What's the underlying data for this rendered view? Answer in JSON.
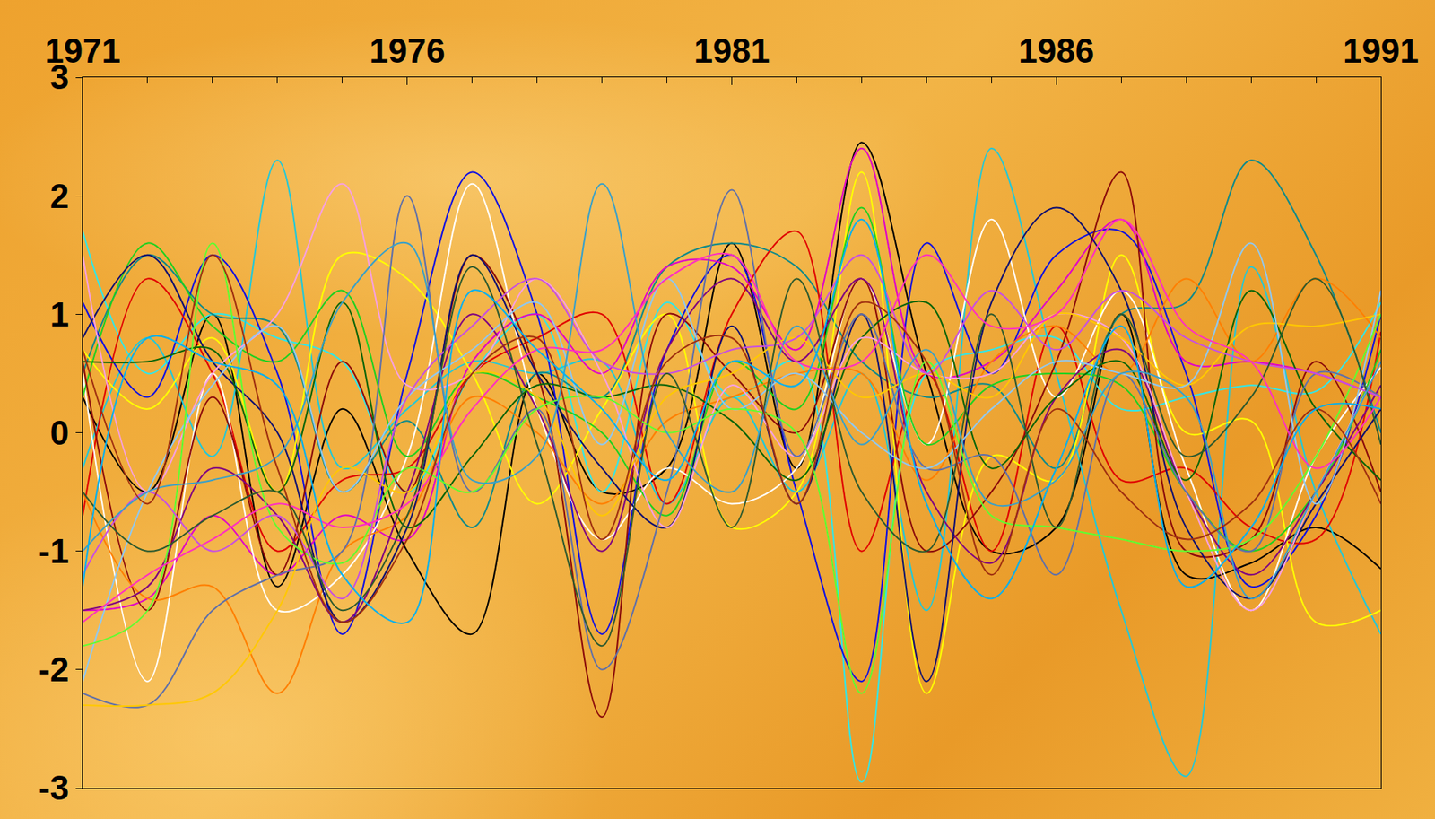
{
  "chart_data": {
    "type": "line",
    "line_style": "smooth",
    "grid": false,
    "x": [
      1971,
      1972,
      1973,
      1974,
      1975,
      1976,
      1977,
      1978,
      1979,
      1980,
      1981,
      1982,
      1983,
      1984,
      1985,
      1986,
      1987,
      1988,
      1989,
      1990,
      1991
    ],
    "xlim": [
      1971,
      1991
    ],
    "xticks": [
      1971,
      1976,
      1981,
      1986,
      1991
    ],
    "ylim": [
      -3,
      3
    ],
    "yticks": [
      -3,
      -2,
      -1,
      0,
      1,
      2,
      3
    ],
    "series": [
      {
        "color": "#000000",
        "values": [
          0.3,
          -0.5,
          1.0,
          -1.3,
          0.2,
          -1.0,
          -1.7,
          0.5,
          -0.5,
          -0.3,
          1.6,
          -0.3,
          2.45,
          0.5,
          -1.0,
          -0.8,
          1.0,
          -1.2,
          -1.1,
          -0.8,
          -1.15
        ]
      },
      {
        "color": "#33e6e6",
        "values": [
          1.7,
          0.5,
          1.0,
          0.8,
          0.6,
          -0.5,
          0.5,
          1.0,
          -0.5,
          1.1,
          0.3,
          0.6,
          -2.95,
          0.5,
          0.7,
          0.8,
          0.2,
          0.3,
          0.4,
          0.35,
          1.1
        ]
      },
      {
        "color": "#22c8d8",
        "values": [
          -0.3,
          0.8,
          -0.2,
          2.3,
          -0.3,
          0.2,
          0.6,
          0.5,
          0.6,
          -0.6,
          0.3,
          -0.5,
          0.5,
          -1.5,
          2.4,
          0.5,
          -1.5,
          -2.9,
          1.4,
          -0.5,
          -1.7
        ]
      },
      {
        "color": "#0e8a8a",
        "values": [
          0.5,
          1.5,
          1.0,
          0.9,
          -0.5,
          0.1,
          -0.8,
          0.5,
          0.3,
          1.4,
          1.6,
          1.4,
          0.6,
          0.3,
          0.4,
          -0.3,
          1.0,
          1.1,
          2.3,
          1.5,
          0.0
        ]
      },
      {
        "color": "#1010e0",
        "values": [
          1.1,
          0.3,
          1.5,
          0.5,
          -1.7,
          0.5,
          2.2,
          1.0,
          -1.7,
          0.7,
          1.5,
          -0.5,
          -2.1,
          1.6,
          0.5,
          1.5,
          1.7,
          0.5,
          -1.3,
          -0.7,
          1.0
        ]
      },
      {
        "color": "#e00000",
        "values": [
          -0.7,
          1.3,
          0.5,
          -1.0,
          -0.4,
          -0.3,
          0.5,
          0.8,
          1.0,
          -0.6,
          1.0,
          1.7,
          -1.0,
          0.5,
          -1.0,
          0.9,
          -0.4,
          -0.3,
          -0.8,
          -0.9,
          0.85
        ]
      },
      {
        "color": "#e000c8",
        "values": [
          -1.5,
          -1.4,
          -0.7,
          -1.2,
          -0.7,
          -0.9,
          0.6,
          1.0,
          0.5,
          1.4,
          1.4,
          0.7,
          2.4,
          0.5,
          0.6,
          1.2,
          1.8,
          0.6,
          0.6,
          0.5,
          0.3
        ]
      },
      {
        "color": "#ffff00",
        "values": [
          0.7,
          0.2,
          0.8,
          -0.5,
          1.5,
          1.3,
          0.5,
          -0.6,
          0.2,
          1.0,
          -0.8,
          -0.5,
          2.2,
          -2.2,
          -0.2,
          -0.4,
          1.5,
          0.0,
          0.1,
          -1.6,
          -1.5
        ]
      },
      {
        "color": "#ffffff",
        "values": [
          0.5,
          -2.1,
          0.5,
          -1.5,
          -1.2,
          -0.2,
          2.1,
          0.2,
          -0.9,
          -0.3,
          -0.6,
          -0.3,
          1.3,
          -0.1,
          1.8,
          0.3,
          1.2,
          -0.3,
          -1.5,
          -0.2,
          0.55
        ]
      },
      {
        "color": "#20d020",
        "values": [
          0.3,
          1.6,
          0.9,
          0.6,
          1.2,
          -0.2,
          0.5,
          0.3,
          0.0,
          -0.7,
          0.6,
          0.2,
          1.9,
          -0.1,
          0.4,
          0.5,
          0.4,
          -0.5,
          -1.0,
          -0.5,
          0.7
        ]
      },
      {
        "color": "#8b0a0a",
        "values": [
          0.6,
          -1.5,
          0.3,
          -1.2,
          0.6,
          -0.5,
          1.5,
          0.5,
          -2.4,
          1.0,
          0.5,
          0.0,
          1.3,
          -1.0,
          -0.5,
          0.6,
          2.2,
          -1.0,
          -0.9,
          0.6,
          -0.5
        ]
      },
      {
        "color": "#ff7f00",
        "values": [
          -0.5,
          -1.4,
          -1.3,
          -2.2,
          -1.0,
          -0.7,
          0.3,
          0.0,
          -0.6,
          0.1,
          0.3,
          0.5,
          0.5,
          -0.4,
          0.6,
          0.9,
          0.5,
          1.3,
          0.6,
          1.3,
          0.8
        ]
      },
      {
        "color": "#800080",
        "values": [
          -1.5,
          -1.3,
          -0.3,
          -0.7,
          -1.6,
          -0.5,
          1.0,
          0.2,
          -1.0,
          0.7,
          1.3,
          0.6,
          1.3,
          -0.5,
          -1.1,
          0.3,
          0.7,
          -0.5,
          -1.2,
          -0.5,
          0.4
        ]
      },
      {
        "color": "#101070",
        "values": [
          0.8,
          1.5,
          0.6,
          0.0,
          -1.6,
          -0.8,
          1.5,
          0.5,
          -0.3,
          -0.8,
          0.9,
          -0.6,
          1.0,
          -2.1,
          1.1,
          1.9,
          1.2,
          -0.8,
          -1.4,
          -0.6,
          0.2
        ]
      },
      {
        "color": "#086408",
        "values": [
          0.6,
          0.6,
          0.7,
          -0.5,
          1.1,
          -0.8,
          -0.2,
          0.4,
          0.3,
          0.4,
          0.1,
          -0.4,
          0.8,
          1.1,
          -0.3,
          0.3,
          0.6,
          -0.4,
          1.2,
          0.2,
          -0.4
        ]
      },
      {
        "color": "#f7a0e0",
        "values": [
          1.5,
          -0.5,
          0.5,
          1.0,
          2.1,
          0.4,
          0.5,
          1.3,
          0.5,
          -0.8,
          0.4,
          -0.2,
          0.8,
          0.5,
          0.5,
          1.0,
          0.8,
          -0.5,
          -1.5,
          -0.5,
          0.6
        ]
      },
      {
        "color": "#6070a8",
        "values": [
          -2.2,
          -2.3,
          -1.5,
          -1.2,
          -1.0,
          2.0,
          -0.5,
          0.2,
          -2.0,
          -0.5,
          2.05,
          -0.2,
          1.0,
          -0.3,
          -0.2,
          -1.2,
          0.5,
          -0.5,
          -1.0,
          0.5,
          0.3
        ]
      },
      {
        "color": "#ffc800",
        "values": [
          -2.3,
          -2.3,
          -2.2,
          -1.5,
          -0.3,
          -0.5,
          0.5,
          0.3,
          -0.7,
          0.3,
          0.5,
          0.8,
          0.3,
          0.5,
          0.3,
          1.0,
          0.8,
          0.4,
          0.9,
          0.9,
          1.0
        ]
      },
      {
        "color": "#90c8f0",
        "values": [
          -2.1,
          -0.5,
          0.4,
          0.9,
          -0.5,
          0.3,
          0.7,
          1.1,
          -0.1,
          1.3,
          0.2,
          0.5,
          0.0,
          -0.3,
          0.2,
          0.6,
          0.5,
          0.4,
          1.6,
          -0.6,
          1.2
        ]
      },
      {
        "color": "#60ff30",
        "values": [
          -1.8,
          -1.5,
          1.6,
          -0.8,
          -1.1,
          -0.3,
          -0.5,
          0.2,
          0.3,
          0.0,
          0.2,
          0.0,
          -2.2,
          0.6,
          -0.7,
          -0.8,
          -0.9,
          -1.0,
          -0.9,
          -0.2,
          1.0
        ]
      },
      {
        "color": "#c850e0",
        "values": [
          -1.2,
          -0.5,
          -1.0,
          -0.7,
          -1.4,
          0.3,
          0.9,
          1.3,
          0.6,
          0.5,
          0.7,
          0.8,
          1.5,
          0.5,
          1.2,
          0.7,
          1.2,
          0.8,
          0.6,
          0.5,
          0.3
        ]
      },
      {
        "color": "#2e5a2e",
        "values": [
          -0.5,
          -1.0,
          -0.7,
          -0.5,
          -1.5,
          -0.7,
          1.4,
          -0.1,
          -1.8,
          0.5,
          -0.8,
          1.3,
          -0.5,
          -1.0,
          1.0,
          -0.8,
          1.0,
          -0.2,
          0.3,
          1.3,
          -0.1
        ]
      },
      {
        "color": "#3aa0c8",
        "values": [
          -1.0,
          -0.5,
          -0.4,
          -0.2,
          1.1,
          1.6,
          -0.4,
          -0.2,
          2.1,
          0.0,
          -0.5,
          0.9,
          -0.1,
          0.7,
          -0.6,
          -0.4,
          0.5,
          0.3,
          -1.4,
          -0.5,
          0.6
        ]
      },
      {
        "color": "#ff30c0",
        "values": [
          -1.6,
          -1.2,
          -0.9,
          -0.6,
          -0.8,
          -0.6,
          0.2,
          0.7,
          0.7,
          1.3,
          1.5,
          0.6,
          0.6,
          1.5,
          0.9,
          1.0,
          1.8,
          0.9,
          0.6,
          -0.3,
          0.3
        ]
      },
      {
        "color": "#a03010",
        "values": [
          0.7,
          -0.6,
          1.5,
          -0.3,
          -1.6,
          -0.9,
          0.5,
          0.8,
          -0.9,
          0.6,
          0.8,
          -0.6,
          1.1,
          0.6,
          -1.2,
          0.2,
          -0.5,
          -0.9,
          -0.6,
          0.2,
          -0.6
        ]
      },
      {
        "color": "#00b0f0",
        "values": [
          -1.3,
          0.8,
          0.6,
          0.4,
          -1.2,
          -1.6,
          1.2,
          0.7,
          0.2,
          -0.4,
          0.6,
          0.4,
          1.8,
          -0.6,
          -1.4,
          -0.3,
          0.9,
          -1.3,
          -0.8,
          0.2,
          0.2
        ]
      }
    ]
  }
}
